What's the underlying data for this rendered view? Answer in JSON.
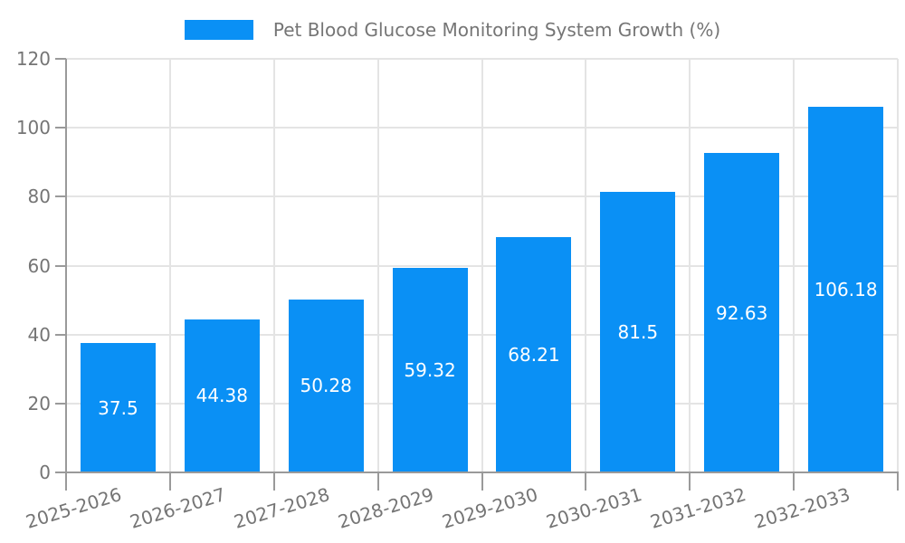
{
  "legend": {
    "label": "Pet Blood Glucose Monitoring System Growth (%)"
  },
  "colors": {
    "bar": "#0a90f5",
    "axis": "#9a9a9a",
    "grid": "#e4e4e4",
    "text": "#757575",
    "value_label": "#ffffff",
    "background": "#ffffff"
  },
  "chart_data": {
    "type": "bar",
    "title": "Pet Blood Glucose Monitoring System Growth (%)",
    "series_name": "Pet Blood Glucose Monitoring System Growth (%)",
    "categories": [
      "2025-2026",
      "2026-2027",
      "2027-2028",
      "2028-2029",
      "2029-2030",
      "2030-2031",
      "2031-2032",
      "2032-2033"
    ],
    "values": [
      37.5,
      44.38,
      50.28,
      59.32,
      68.21,
      81.5,
      92.63,
      106.18
    ],
    "value_labels": [
      "37.5",
      "44.38",
      "50.28",
      "59.32",
      "68.21",
      "81.5",
      "92.63",
      "106.18"
    ],
    "xlabel": "",
    "ylabel": "",
    "ylim": [
      0,
      120
    ],
    "yticks": [
      0,
      20,
      40,
      60,
      80,
      100,
      120
    ],
    "grid": true,
    "legend_position": "top",
    "value_labels_position": "inside-center"
  }
}
